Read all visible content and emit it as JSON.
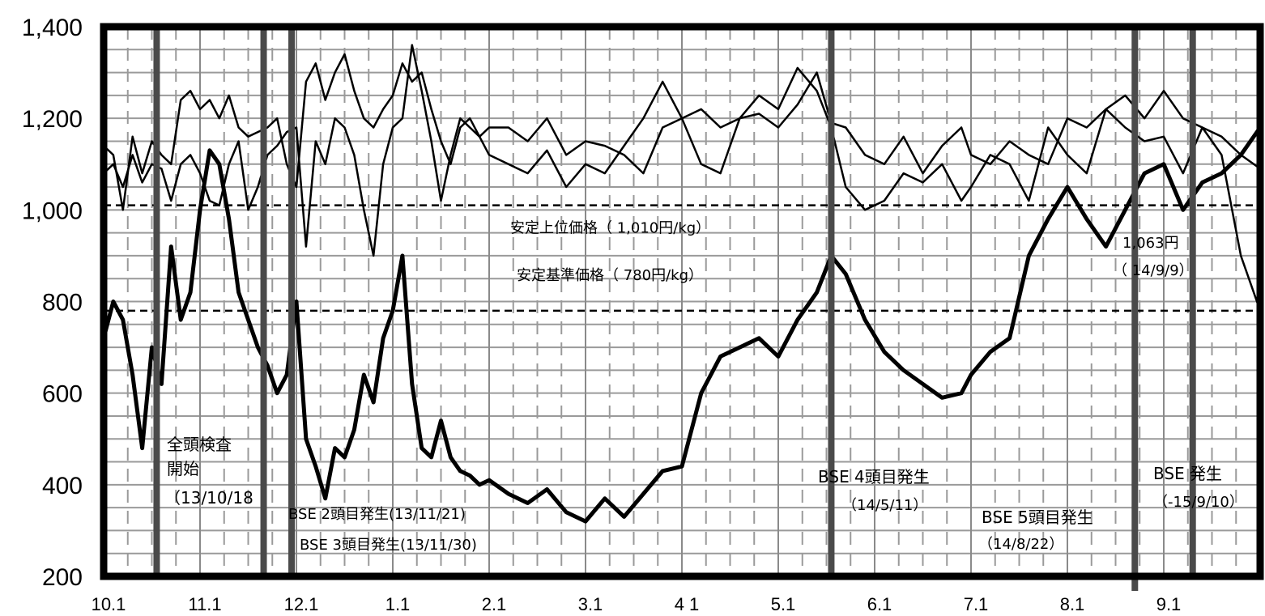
{
  "chart_data": {
    "type": "line",
    "title": "",
    "xlabel": "",
    "ylabel": "",
    "ylim": [
      200,
      1400
    ],
    "yticks": [
      "1,400",
      "1,200",
      "1,000",
      "800",
      "600",
      "400",
      "200"
    ],
    "ytick_values": [
      1400,
      1200,
      1000,
      800,
      600,
      400,
      200
    ],
    "xticks": [
      "10.1",
      "11.1",
      "12.1",
      "1.1",
      "2.1",
      "3.1",
      "4 1",
      "5.1",
      "6.1",
      "7.1",
      "8.1",
      "9.1"
    ],
    "xrange_months": [
      0,
      12
    ],
    "grid": true,
    "reference_lines": [
      {
        "label": "安定上位価格（ 1,010円/kg）",
        "value": 1010
      },
      {
        "label": "安定基準価格（ 780円/kg）",
        "value": 780
      }
    ],
    "events": [
      {
        "x": 0.55,
        "label1": "全頭検査",
        "label2": "開始",
        "label3": "（13/10/18"
      },
      {
        "x": 1.66,
        "label1": "BSE 2頭目発生(13/11/21)"
      },
      {
        "x": 1.95,
        "label1": "BSE 3頭目発生(13/11/30)"
      },
      {
        "x": 7.55,
        "label1": "BSE 4頭目発生",
        "label2": "（14/5/11）"
      },
      {
        "x": 10.7,
        "label1": "BSE 5頭目発生",
        "label2": "（14/8/22）"
      },
      {
        "x": 11.3,
        "label1": "BSE 発生",
        "label2": "（-15/9/10）"
      }
    ],
    "point_annotation": {
      "x": 11.05,
      "value": 1063,
      "label1": "1,063円",
      "label2": "（ 14/9/9）"
    },
    "series": [
      {
        "style": "bold",
        "x": [
          0.0,
          0.1,
          0.2,
          0.3,
          0.4,
          0.5,
          0.6,
          0.7,
          0.8,
          0.9,
          1.0,
          1.1,
          1.2,
          1.3,
          1.4,
          1.5,
          1.6,
          1.7,
          1.8,
          1.9,
          2.0,
          2.1,
          2.2,
          2.3,
          2.4,
          2.5,
          2.6,
          2.7,
          2.8,
          2.9,
          3.0,
          3.1,
          3.2,
          3.3,
          3.4,
          3.5,
          3.6,
          3.7,
          3.8,
          3.9,
          4.0,
          4.2,
          4.4,
          4.6,
          4.8,
          5.0,
          5.2,
          5.4,
          5.6,
          5.8,
          6.0,
          6.2,
          6.4,
          6.6,
          6.8,
          7.0,
          7.2,
          7.4,
          7.55,
          7.7,
          7.9,
          8.1,
          8.3,
          8.5,
          8.7,
          8.9,
          9.0,
          9.2,
          9.4,
          9.6,
          9.8,
          10.0,
          10.2,
          10.4,
          10.6,
          10.8,
          11.0,
          11.2,
          11.4,
          11.6,
          11.8,
          12.0
        ],
        "values": [
          720,
          800,
          760,
          640,
          480,
          700,
          620,
          920,
          760,
          820,
          1000,
          1130,
          1100,
          980,
          820,
          760,
          700,
          660,
          600,
          640,
          800,
          500,
          440,
          370,
          480,
          460,
          520,
          640,
          580,
          720,
          780,
          900,
          620,
          480,
          460,
          540,
          460,
          430,
          420,
          400,
          410,
          380,
          360,
          390,
          340,
          320,
          370,
          330,
          380,
          430,
          440,
          600,
          680,
          700,
          720,
          680,
          760,
          820,
          900,
          860,
          760,
          690,
          650,
          620,
          590,
          600,
          640,
          690,
          720,
          900,
          980,
          1050,
          980,
          920,
          1000,
          1080,
          1100,
          1000,
          1060,
          1080,
          1120,
          1180
        ]
      },
      {
        "style": "thin",
        "x": [
          0.0,
          0.1,
          0.2,
          0.3,
          0.4,
          0.5,
          0.6,
          0.7,
          0.8,
          0.9,
          1.0,
          1.1,
          1.2,
          1.3,
          1.4,
          1.5,
          1.6,
          1.7,
          1.8,
          1.9,
          2.0,
          2.1,
          2.2,
          2.3,
          2.4,
          2.5,
          2.6,
          2.7,
          2.8,
          2.9,
          3.0,
          3.1,
          3.2,
          3.3,
          3.4,
          3.5,
          3.6,
          3.7,
          3.8,
          3.9,
          4.0,
          4.2,
          4.4,
          4.6,
          4.8,
          5.0,
          5.2,
          5.4,
          5.6,
          5.8,
          6.0,
          6.2,
          6.4,
          6.6,
          6.8,
          7.0,
          7.2,
          7.4,
          7.55,
          7.7,
          7.9,
          8.1,
          8.3,
          8.5,
          8.7,
          8.9,
          9.0,
          9.2,
          9.4,
          9.6,
          9.8,
          10.0,
          10.2,
          10.4,
          10.6,
          10.8,
          11.0,
          11.2,
          11.4,
          11.6,
          11.8,
          12.0
        ],
        "values": [
          1140,
          1120,
          1000,
          1160,
          1080,
          1150,
          1120,
          1100,
          1240,
          1260,
          1220,
          1240,
          1200,
          1250,
          1180,
          1160,
          1170,
          1180,
          1200,
          1100,
          1050,
          1280,
          1320,
          1240,
          1300,
          1340,
          1260,
          1200,
          1180,
          1220,
          1250,
          1320,
          1280,
          1300,
          1220,
          1150,
          1100,
          1180,
          1200,
          1160,
          1180,
          1180,
          1150,
          1200,
          1120,
          1150,
          1140,
          1120,
          1080,
          1180,
          1200,
          1220,
          1180,
          1200,
          1210,
          1180,
          1230,
          1300,
          1190,
          1180,
          1120,
          1100,
          1160,
          1080,
          1140,
          1180,
          1120,
          1100,
          1150,
          1120,
          1100,
          1200,
          1180,
          1220,
          1250,
          1200,
          1260,
          1200,
          1180,
          1160,
          1120,
          1090
        ]
      },
      {
        "style": "thin",
        "x": [
          0.0,
          0.1,
          0.2,
          0.3,
          0.4,
          0.5,
          0.6,
          0.7,
          0.8,
          0.9,
          1.0,
          1.1,
          1.2,
          1.3,
          1.4,
          1.5,
          1.6,
          1.7,
          1.8,
          1.9,
          2.0,
          2.1,
          2.2,
          2.3,
          2.4,
          2.5,
          2.6,
          2.7,
          2.8,
          2.9,
          3.0,
          3.1,
          3.2,
          3.3,
          3.4,
          3.5,
          3.6,
          3.7,
          3.8,
          3.9,
          4.0,
          4.2,
          4.4,
          4.6,
          4.8,
          5.0,
          5.2,
          5.4,
          5.6,
          5.8,
          6.0,
          6.2,
          6.4,
          6.6,
          6.8,
          7.0,
          7.2,
          7.4,
          7.55,
          7.7,
          7.9,
          8.1,
          8.3,
          8.5,
          8.7,
          8.9,
          9.0,
          9.2,
          9.4,
          9.6,
          9.8,
          10.0,
          10.2,
          10.4,
          10.6,
          10.8,
          11.0,
          11.2,
          11.4,
          11.6,
          11.8,
          12.0
        ],
        "values": [
          1080,
          1100,
          1050,
          1120,
          1060,
          1100,
          1090,
          1020,
          1100,
          1120,
          1080,
          1020,
          1010,
          1100,
          1150,
          1000,
          1050,
          1120,
          1140,
          1170,
          1180,
          920,
          1150,
          1100,
          1200,
          1180,
          1120,
          1000,
          900,
          1100,
          1180,
          1200,
          1360,
          1260,
          1150,
          1020,
          1120,
          1200,
          1180,
          1160,
          1120,
          1100,
          1080,
          1130,
          1050,
          1100,
          1080,
          1140,
          1200,
          1280,
          1200,
          1100,
          1080,
          1200,
          1250,
          1220,
          1310,
          1260,
          1180,
          1050,
          1000,
          1020,
          1080,
          1060,
          1100,
          1020,
          1050,
          1120,
          1100,
          1020,
          1180,
          1120,
          1080,
          1220,
          1180,
          1150,
          1160,
          1080,
          1180,
          1120,
          900,
          780
        ]
      }
    ]
  }
}
